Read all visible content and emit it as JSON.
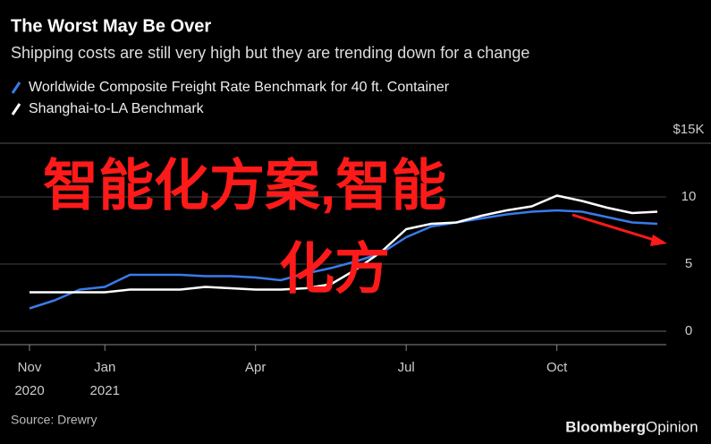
{
  "chart_data": {
    "type": "line",
    "title": "The Worst May Be Over",
    "subtitle": "Shipping costs are still very high but they are trending down for a change",
    "source": "Source: Drewry",
    "brand": [
      "Bloomberg",
      "Opinion"
    ],
    "watermark": [
      "智能化方案,智能",
      "化方"
    ],
    "categories": [
      "Nov 2020",
      null,
      null,
      "Jan 2021",
      null,
      null,
      null,
      null,
      null,
      "Apr",
      null,
      null,
      null,
      null,
      null,
      "Jul",
      null,
      null,
      null,
      null,
      null,
      "Oct",
      null,
      null,
      null,
      null
    ],
    "series": [
      {
        "name": "Worldwide Composite Freight Rate Benchmark for 40 ft. Container",
        "color": "#3a7bea",
        "values": [
          1.7,
          2.3,
          3.1,
          3.3,
          4.2,
          4.2,
          4.2,
          4.1,
          4.1,
          4.0,
          3.8,
          4.3,
          4.7,
          5.2,
          5.8,
          7.0,
          7.8,
          8.1,
          8.4,
          8.7,
          8.9,
          9.0,
          8.9,
          8.5,
          8.1,
          8.0
        ]
      },
      {
        "name": "Shanghai-to-LA Benchmark",
        "color": "#ffffff",
        "values": [
          2.9,
          2.9,
          2.9,
          2.9,
          3.1,
          3.1,
          3.1,
          3.3,
          3.2,
          3.1,
          3.1,
          3.2,
          3.5,
          4.6,
          5.9,
          7.6,
          8.0,
          8.1,
          8.6,
          9.0,
          9.3,
          10.1,
          9.7,
          9.2,
          8.8,
          8.9
        ]
      }
    ],
    "ylim": [
      0,
      15
    ],
    "yticks": [
      0,
      5,
      10,
      {
        "value": 15,
        "label": "$15K"
      }
    ],
    "grid": true
  }
}
